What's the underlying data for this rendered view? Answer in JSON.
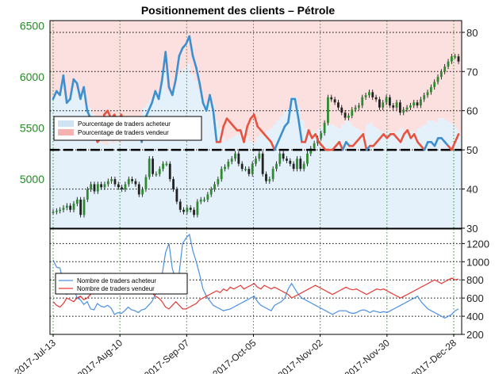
{
  "chart_data": [
    {
      "type": "line",
      "title": "Positionnement des clients – Pétrole",
      "x_labels": [
        "2017-Jul-13",
        "2017-Aug-10",
        "2017-Sep-07",
        "2017-Oct-05",
        "2017-Nov-02",
        "2017-Nov-30",
        "2017-Dec-28"
      ],
      "y_left_ticks": [
        "4500",
        "5000",
        "5500",
        "6000",
        "6500"
      ],
      "y_left_range": [
        4520,
        6550
      ],
      "y_right_ticks": [
        "30",
        "40",
        "50",
        "60",
        "70",
        "80"
      ],
      "y_right_range": [
        30,
        83
      ],
      "reference_line": 50,
      "legend": {
        "location": "center-left",
        "buy_label": "Pourcentage de traders acheteur",
        "sell_label": "Pourcentage de traders vendeur"
      },
      "price_ohlc_approx": [
        4680,
        4690,
        4700,
        4720,
        4740,
        4700,
        4760,
        4800,
        4650,
        4800,
        4900,
        4950,
        4880,
        4950,
        4920,
        4950,
        4980,
        5000,
        4950,
        4920,
        4900,
        4950,
        5000,
        4980,
        4950,
        4850,
        4900,
        5020,
        5200,
        5050,
        5050,
        5100,
        5150,
        5150,
        5000,
        4900,
        4780,
        4700,
        4680,
        4720,
        4700,
        4650,
        4780,
        4800,
        4800,
        4850,
        4900,
        4950,
        5000,
        5100,
        5120,
        5170,
        5200,
        5250,
        5150,
        5100,
        5100,
        5050,
        5150,
        5200,
        5250,
        5050,
        4980,
        5000,
        5100,
        5150,
        5250,
        5200,
        5180,
        5150,
        5100,
        5200,
        5100,
        5150,
        5250,
        5300,
        5350,
        5400,
        5450,
        5550,
        5800,
        5780,
        5750,
        5700,
        5650,
        5600,
        5620,
        5680,
        5700,
        5720,
        5800,
        5820,
        5850,
        5800,
        5780,
        5700,
        5750,
        5800,
        5720,
        5700,
        5750,
        5650,
        5680,
        5700,
        5720,
        5750,
        5720,
        5780,
        5820,
        5850,
        5900,
        5950,
        6000,
        6050,
        6100,
        6150,
        6200,
        6200,
        6150
      ],
      "buy_pct": [
        63,
        65,
        64,
        69,
        62,
        63,
        68,
        67,
        63,
        66,
        60,
        58,
        55,
        48,
        47,
        41,
        40,
        42,
        41,
        43,
        41,
        44,
        43,
        42,
        42,
        43,
        48,
        58,
        60,
        62,
        65,
        63,
        68,
        75,
        66,
        64,
        68,
        74,
        76,
        77,
        79,
        74,
        71,
        67,
        62,
        60,
        64,
        60,
        52,
        48,
        44,
        42,
        43,
        44,
        45,
        45,
        48,
        44,
        42,
        41,
        44,
        45,
        46,
        47,
        48,
        50,
        52,
        54,
        56,
        57,
        63,
        63,
        58,
        52,
        48,
        45,
        47,
        46,
        48,
        49,
        50,
        50,
        50,
        49,
        48,
        50,
        52,
        51,
        49,
        48,
        47,
        46,
        50,
        51,
        49,
        48,
        47,
        46,
        47,
        46,
        46,
        47,
        48,
        46,
        45,
        47,
        46,
        48,
        49,
        50,
        52,
        52,
        51,
        53,
        53,
        52,
        51,
        50,
        48,
        46
      ],
      "sell_pct": [
        37,
        35,
        36,
        31,
        38,
        37,
        32,
        33,
        37,
        34,
        40,
        42,
        45,
        52,
        53,
        59,
        60,
        58,
        59,
        57,
        59,
        56,
        57,
        58,
        58,
        57,
        52,
        42,
        40,
        38,
        35,
        37,
        32,
        25,
        34,
        36,
        32,
        26,
        24,
        23,
        21,
        26,
        29,
        33,
        38,
        40,
        36,
        40,
        48,
        52,
        56,
        58,
        57,
        56,
        55,
        55,
        52,
        56,
        58,
        59,
        56,
        55,
        54,
        53,
        52,
        50,
        48,
        46,
        44,
        43,
        37,
        37,
        42,
        48,
        52,
        55,
        53,
        54,
        52,
        51,
        50,
        50,
        50,
        51,
        52,
        50,
        48,
        49,
        51,
        52,
        53,
        54,
        50,
        49,
        51,
        52,
        53,
        54,
        53,
        54,
        54,
        53,
        52,
        54,
        55,
        53,
        54,
        52,
        51,
        50,
        48,
        48,
        49,
        47,
        47,
        48,
        49,
        50,
        52,
        54
      ]
    },
    {
      "type": "line",
      "y_ticks": [
        "200",
        "400",
        "600",
        "800",
        "1000",
        "1200"
      ],
      "y_range": [
        200,
        1360
      ],
      "legend": {
        "location": "center-left",
        "buy_label": "Nombre de traders acheteur",
        "sell_label": "Nombre de traders vendeur"
      },
      "series": [
        {
          "name": "Nombre de traders acheteur",
          "color": "#4a90e2",
          "values": [
            1020,
            940,
            930,
            760,
            640,
            690,
            720,
            600,
            580,
            530,
            560,
            480,
            470,
            540,
            510,
            500,
            520,
            490,
            420,
            440,
            430,
            460,
            500,
            470,
            460,
            440,
            470,
            480,
            520,
            560,
            640,
            720,
            860,
            1100,
            1200,
            920,
            800,
            880,
            1200,
            1260,
            1300,
            1120,
            1000,
            860,
            700,
            620,
            570,
            520,
            500,
            480,
            460,
            470,
            480,
            500,
            520,
            540,
            560,
            580,
            600,
            620,
            560,
            520,
            500,
            480,
            460,
            520,
            540,
            560,
            600,
            700,
            760,
            700,
            640,
            600,
            580,
            560,
            540,
            520,
            500,
            480,
            460,
            440,
            420,
            440,
            460,
            460,
            460,
            440,
            430,
            440,
            460,
            470,
            460,
            440,
            460,
            450,
            440,
            450,
            440,
            460,
            480,
            500,
            520,
            540,
            560,
            580,
            600,
            620,
            560,
            520,
            480,
            460,
            440,
            420,
            400,
            380,
            400,
            420,
            460,
            480
          ]
        },
        {
          "name": "Nombre de traders vendeur",
          "color": "#e53935",
          "values": [
            560,
            520,
            500,
            540,
            600,
            580,
            560,
            600,
            620,
            580,
            600,
            640,
            700,
            740,
            720,
            700,
            680,
            720,
            700,
            680,
            700,
            720,
            700,
            680,
            720,
            700,
            690,
            700,
            680,
            660,
            620,
            600,
            560,
            500,
            480,
            520,
            560,
            520,
            480,
            480,
            500,
            520,
            540,
            580,
            600,
            620,
            640,
            660,
            680,
            660,
            700,
            680,
            720,
            700,
            720,
            740,
            700,
            720,
            740,
            760,
            720,
            700,
            740,
            720,
            700,
            720,
            700,
            680,
            660,
            640,
            600,
            620,
            640,
            660,
            680,
            700,
            720,
            740,
            720,
            700,
            680,
            660,
            640,
            660,
            680,
            700,
            720,
            700,
            690,
            700,
            680,
            660,
            640,
            660,
            680,
            700,
            690,
            700,
            680,
            660,
            640,
            620,
            600,
            620,
            640,
            660,
            680,
            700,
            720,
            740,
            760,
            780,
            800,
            780,
            760,
            780,
            800,
            820,
            800,
            810
          ]
        }
      ]
    }
  ]
}
